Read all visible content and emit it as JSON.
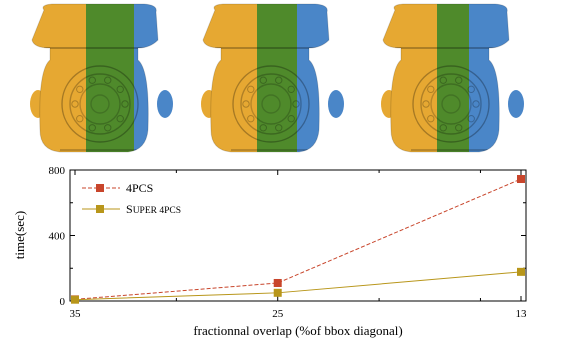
{
  "renders": [
    {
      "colors": {
        "left": "#e6a832",
        "middle": "#4f8a2b",
        "right": "#4a86c8"
      },
      "overlap_pct": 35
    },
    {
      "colors": {
        "left": "#e6a832",
        "middle": "#4f8a2b",
        "right": "#4a86c8"
      },
      "overlap_pct": 25
    },
    {
      "colors": {
        "left": "#e6a832",
        "middle": "#4f8a2b",
        "right": "#4a86c8"
      },
      "overlap_pct": 13
    }
  ],
  "chart_data": {
    "type": "line",
    "xlabel": "fractionnal overlap (%of bbox diagonal)",
    "ylabel": "time(sec)",
    "categories": [
      "35",
      "25",
      "13"
    ],
    "x_values": [
      35,
      25,
      13
    ],
    "xlim": [
      35,
      13
    ],
    "ylim": [
      0,
      800
    ],
    "yticks": [
      "0",
      "400",
      "800"
    ],
    "legend_position": "top-left",
    "grid": false,
    "series": [
      {
        "name": "4PCS",
        "color": "#c8452b",
        "line": "dashed",
        "marker": "square",
        "values": [
          10,
          110,
          745
        ]
      },
      {
        "name": "SUPER 4PCS",
        "name_display": {
          "first": "S",
          "rest": "UPER 4PCS"
        },
        "color": "#b8961a",
        "line": "solid",
        "marker": "square",
        "values": [
          8,
          50,
          178
        ]
      }
    ]
  }
}
